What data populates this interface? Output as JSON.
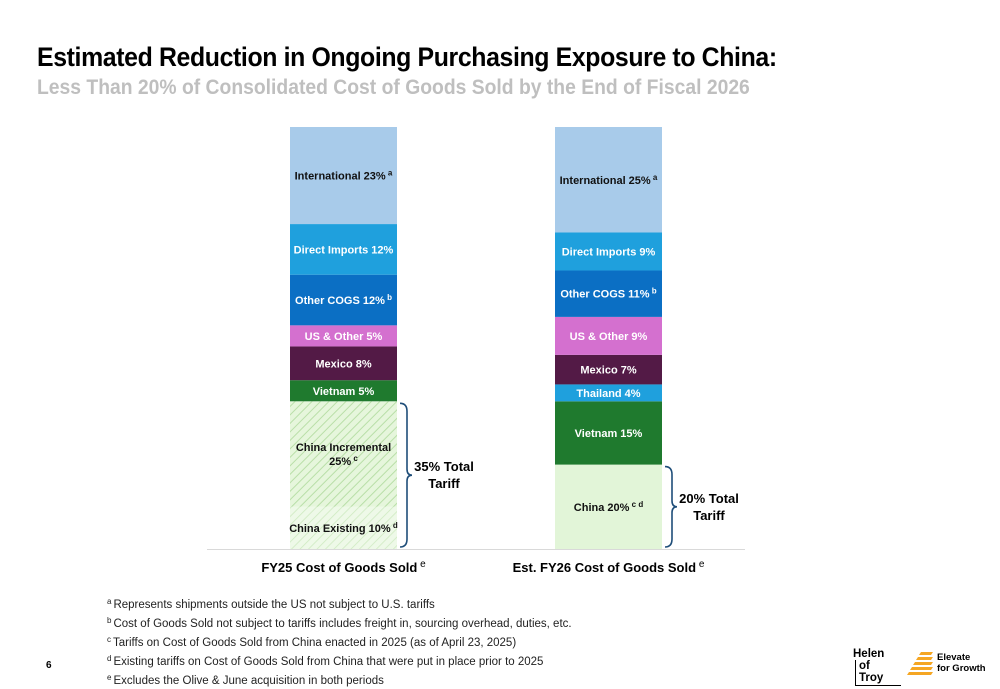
{
  "header": {
    "title": "Estimated Reduction in Ongoing Purchasing Exposure to China:",
    "subtitle": "Less Than 20% of Consolidated Cost of Goods Sold by the End of Fiscal 2026"
  },
  "chart_data": {
    "type": "bar",
    "stacked": true,
    "ylim": [
      0,
      100
    ],
    "grid": false,
    "bars": [
      {
        "category": "FY25 Cost of Goods Sold",
        "category_sup": "e",
        "segments": [
          {
            "label": "China Existing 10%",
            "sup": "d",
            "value": 10,
            "color": "#e2f5d8",
            "pattern": "hatch-light"
          },
          {
            "label": "China Incremental 25%",
            "sup": "c",
            "value": 25,
            "color": "#e2f5d8",
            "pattern": "hatch"
          },
          {
            "label": "Vietnam 5%",
            "sup": "",
            "value": 5,
            "color": "#1f7a2e"
          },
          {
            "label": "Mexico 8%",
            "sup": "",
            "value": 8,
            "color": "#531a46"
          },
          {
            "label": "US & Other 5%",
            "sup": "",
            "value": 5,
            "color": "#d470cf"
          },
          {
            "label": "Other COGS 12%",
            "sup": "b",
            "value": 12,
            "color": "#0b6fc4"
          },
          {
            "label": "Direct Imports 12%",
            "sup": "",
            "value": 12,
            "color": "#1fa0dd"
          },
          {
            "label": "International 23%",
            "sup": "a",
            "value": 23,
            "color": "#a8cbea"
          }
        ],
        "bracket": {
          "line1": "35% Total",
          "line2": "Tariff",
          "from": 0,
          "to": 35
        }
      },
      {
        "category": "Est. FY26 Cost of Goods Sold",
        "category_sup": "e",
        "segments": [
          {
            "label": "China 20%",
            "sup": "c  d",
            "value": 20,
            "color": "#e2f5d8"
          },
          {
            "label": "Vietnam 15%",
            "sup": "",
            "value": 15,
            "color": "#1f7a2e"
          },
          {
            "label": "Thailand 4%",
            "sup": "",
            "value": 4,
            "color": "#1fa0dd"
          },
          {
            "label": "Mexico 7%",
            "sup": "",
            "value": 7,
            "color": "#531a46"
          },
          {
            "label": "US & Other 9%",
            "sup": "",
            "value": 9,
            "color": "#d470cf"
          },
          {
            "label": "Other COGS 11%",
            "sup": "b",
            "value": 11,
            "color": "#0b6fc4"
          },
          {
            "label": "Direct Imports 9%",
            "sup": "",
            "value": 9,
            "color": "#1fa0dd"
          },
          {
            "label": "International 25%",
            "sup": "a",
            "value": 25,
            "color": "#a8cbea"
          }
        ],
        "bracket": {
          "line1": "20% Total",
          "line2": "Tariff",
          "from": 0,
          "to": 20
        }
      }
    ]
  },
  "footnotes": [
    {
      "mark": "a",
      "text": "Represents shipments outside the US not subject to U.S. tariffs"
    },
    {
      "mark": "b",
      "text": "Cost of Goods Sold not subject to tariffs includes freight in, sourcing overhead, duties, etc."
    },
    {
      "mark": "c",
      "text": "Tariffs on Cost of Goods Sold from China enacted in 2025 (as of April 23, 2025)"
    },
    {
      "mark": "d",
      "text": "Existing tariffs on Cost of Goods Sold from China that were put in place prior to 2025"
    },
    {
      "mark": "e",
      "text": "Excludes the Olive & June acquisition in both periods"
    }
  ],
  "page_number": "6",
  "logos": {
    "helen_line1": "Helen",
    "helen_line2": "of Troy",
    "elevate_line1": "Elevate",
    "elevate_line2": "for Growth",
    "accent": "#f5a623"
  }
}
